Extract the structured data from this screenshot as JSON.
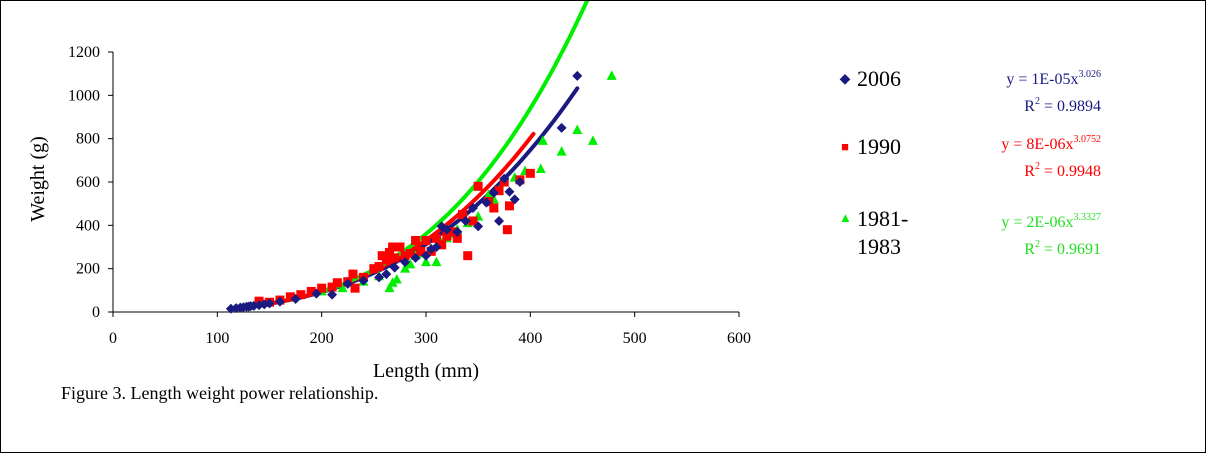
{
  "chart_data": {
    "type": "scatter",
    "xlabel": "Length (mm)",
    "ylabel": "Weight (g)",
    "xlim": [
      0,
      600
    ],
    "ylim": [
      0,
      1200
    ],
    "x_ticks": [
      0,
      100,
      200,
      300,
      400,
      500,
      600
    ],
    "y_ticks": [
      0,
      200,
      400,
      600,
      800,
      1000,
      1200
    ],
    "grid": false,
    "legend_position": "right",
    "series": [
      {
        "name": "2006",
        "color": "#1a1a80",
        "marker": "diamond",
        "equation_prefix": "y = 1E-05x",
        "equation_exponent": "3.026",
        "r2_prefix": "R",
        "r2_suffix": " = 0.9894",
        "trend_a": 1e-05,
        "trend_b": 3.026,
        "trend_range": [
          113,
          445
        ],
        "points": [
          [
            113,
            15
          ],
          [
            118,
            18
          ],
          [
            122,
            20
          ],
          [
            125,
            22
          ],
          [
            128,
            24
          ],
          [
            130,
            25
          ],
          [
            132,
            27
          ],
          [
            135,
            28
          ],
          [
            140,
            32
          ],
          [
            145,
            35
          ],
          [
            150,
            40
          ],
          [
            160,
            48
          ],
          [
            175,
            60
          ],
          [
            195,
            85
          ],
          [
            210,
            80
          ],
          [
            225,
            130
          ],
          [
            240,
            145
          ],
          [
            255,
            160
          ],
          [
            262,
            175
          ],
          [
            270,
            205
          ],
          [
            280,
            230
          ],
          [
            290,
            250
          ],
          [
            300,
            260
          ],
          [
            305,
            290
          ],
          [
            310,
            300
          ],
          [
            315,
            395
          ],
          [
            320,
            380
          ],
          [
            330,
            370
          ],
          [
            338,
            420
          ],
          [
            345,
            480
          ],
          [
            350,
            395
          ],
          [
            358,
            505
          ],
          [
            365,
            550
          ],
          [
            370,
            420
          ],
          [
            375,
            615
          ],
          [
            380,
            555
          ],
          [
            385,
            520
          ],
          [
            390,
            600
          ],
          [
            430,
            850
          ],
          [
            445,
            1090
          ]
        ]
      },
      {
        "name": "1990",
        "color": "#ff0000",
        "marker": "square",
        "equation_prefix": "y = 8E-06x",
        "equation_exponent": "3.0752",
        "r2_prefix": "R",
        "r2_suffix": " = 0.9948",
        "trend_a": 8e-06,
        "trend_b": 3.0752,
        "trend_range": [
          140,
          403
        ],
        "points": [
          [
            140,
            50
          ],
          [
            150,
            45
          ],
          [
            160,
            55
          ],
          [
            170,
            70
          ],
          [
            180,
            80
          ],
          [
            190,
            95
          ],
          [
            200,
            110
          ],
          [
            210,
            115
          ],
          [
            215,
            135
          ],
          [
            225,
            140
          ],
          [
            230,
            175
          ],
          [
            232,
            110
          ],
          [
            240,
            160
          ],
          [
            250,
            200
          ],
          [
            255,
            210
          ],
          [
            258,
            260
          ],
          [
            262,
            240
          ],
          [
            265,
            275
          ],
          [
            268,
            300
          ],
          [
            270,
            250
          ],
          [
            275,
            300
          ],
          [
            280,
            260
          ],
          [
            285,
            270
          ],
          [
            290,
            330
          ],
          [
            295,
            280
          ],
          [
            300,
            330
          ],
          [
            305,
            280
          ],
          [
            310,
            340
          ],
          [
            315,
            310
          ],
          [
            320,
            350
          ],
          [
            325,
            370
          ],
          [
            330,
            340
          ],
          [
            335,
            450
          ],
          [
            340,
            260
          ],
          [
            345,
            420
          ],
          [
            350,
            580
          ],
          [
            360,
            510
          ],
          [
            365,
            480
          ],
          [
            370,
            560
          ],
          [
            375,
            600
          ],
          [
            378,
            380
          ],
          [
            380,
            490
          ],
          [
            390,
            610
          ],
          [
            400,
            640
          ]
        ]
      },
      {
        "name": "1981-\n1983",
        "color": "#00ee00",
        "marker": "triangle",
        "equation_prefix": "y = 2E-06x",
        "equation_exponent": "3.3327",
        "r2_prefix": "R",
        "r2_suffix": " = 0.9691",
        "trend_a": 2e-06,
        "trend_b": 3.3327,
        "trend_range": [
          200,
          480
        ],
        "points": [
          [
            200,
            95
          ],
          [
            220,
            110
          ],
          [
            240,
            140
          ],
          [
            255,
            165
          ],
          [
            265,
            110
          ],
          [
            268,
            135
          ],
          [
            272,
            150
          ],
          [
            280,
            200
          ],
          [
            285,
            220
          ],
          [
            290,
            260
          ],
          [
            295,
            270
          ],
          [
            300,
            230
          ],
          [
            305,
            290
          ],
          [
            310,
            230
          ],
          [
            315,
            320
          ],
          [
            320,
            340
          ],
          [
            325,
            360
          ],
          [
            330,
            380
          ],
          [
            340,
            410
          ],
          [
            350,
            440
          ],
          [
            360,
            540
          ],
          [
            365,
            520
          ],
          [
            370,
            560
          ],
          [
            375,
            600
          ],
          [
            385,
            620
          ],
          [
            395,
            650
          ],
          [
            410,
            660
          ],
          [
            412,
            790
          ],
          [
            430,
            740
          ],
          [
            445,
            840
          ],
          [
            460,
            790
          ],
          [
            478,
            1090
          ]
        ]
      }
    ]
  },
  "caption": "Figure 3. Length weight power relationship."
}
